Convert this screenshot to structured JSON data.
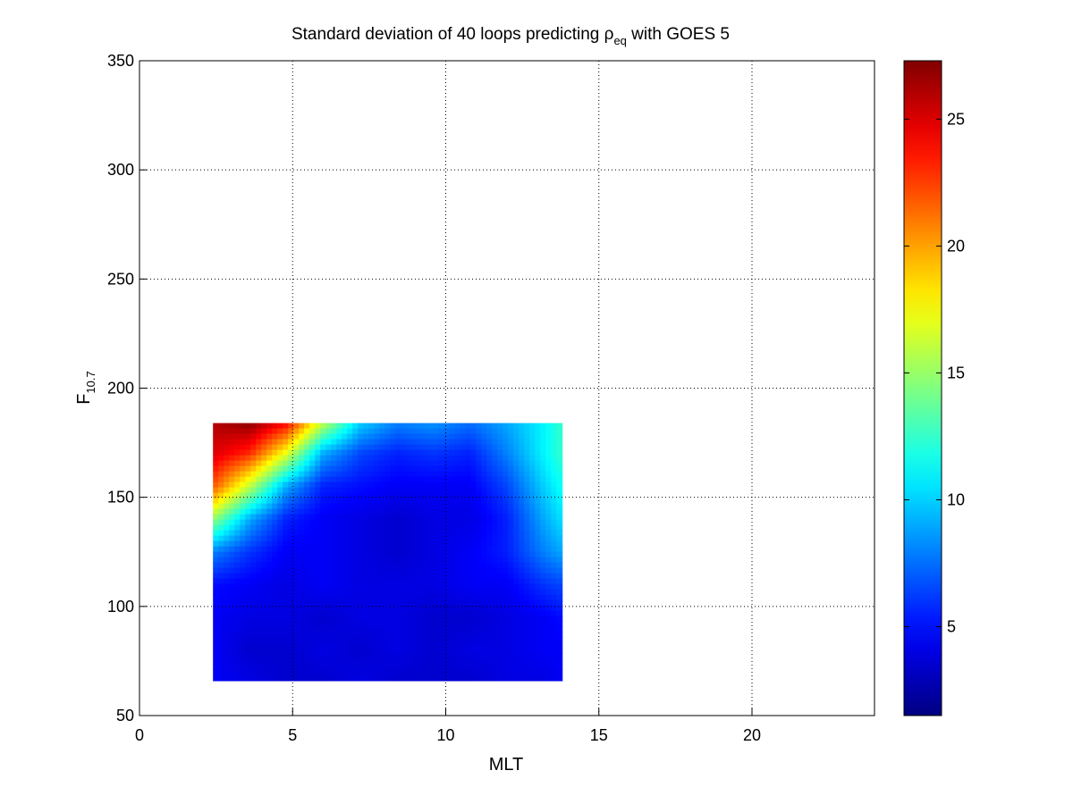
{
  "chart_data": {
    "type": "heatmap",
    "title": {
      "prefix": "Standard deviation of 40 loops predicting ",
      "symbol": "ρ",
      "subscript": "eq",
      "suffix": " with GOES 5"
    },
    "xlabel": "MLT",
    "ylabel": {
      "main": "F",
      "subscript": "10.7"
    },
    "xlim": [
      0,
      24
    ],
    "ylim": [
      50,
      350
    ],
    "x_ticks": [
      0,
      5,
      10,
      15,
      20
    ],
    "y_ticks": [
      50,
      100,
      150,
      200,
      250,
      300,
      350
    ],
    "grid": true,
    "grid_style": "dotted",
    "colormap": "jet",
    "colorbar": {
      "range": [
        1.5,
        27.3
      ],
      "ticks": [
        5,
        10,
        15,
        20,
        25
      ],
      "position": "right"
    },
    "data_extent": {
      "x": [
        2.4,
        13.8
      ],
      "y": [
        66,
        184
      ]
    },
    "grid_values": {
      "x": [
        2.4,
        3.6,
        4.8,
        6.0,
        7.2,
        8.4,
        9.6,
        10.8,
        12.0,
        13.2,
        13.8
      ],
      "y": [
        184,
        170,
        155,
        140,
        125,
        110,
        95,
        80,
        66
      ],
      "z": [
        [
          26.0,
          27.0,
          24.0,
          16.0,
          10.0,
          8.0,
          8.5,
          7.5,
          9.0,
          11.0,
          12.5
        ],
        [
          25.0,
          23.0,
          17.0,
          9.0,
          6.5,
          5.5,
          6.0,
          5.5,
          8.0,
          11.0,
          12.5
        ],
        [
          22.0,
          16.0,
          9.0,
          5.5,
          5.0,
          4.5,
          4.5,
          4.5,
          6.5,
          10.0,
          11.5
        ],
        [
          15.0,
          9.0,
          5.5,
          4.5,
          4.0,
          3.5,
          4.0,
          4.0,
          5.5,
          9.0,
          10.5
        ],
        [
          8.0,
          6.0,
          4.5,
          4.5,
          4.0,
          3.5,
          4.0,
          4.5,
          5.5,
          8.0,
          9.0
        ],
        [
          5.0,
          4.5,
          4.0,
          4.5,
          4.0,
          4.0,
          4.0,
          4.5,
          4.5,
          6.0,
          6.5
        ],
        [
          4.5,
          4.0,
          4.0,
          3.5,
          4.0,
          4.0,
          3.5,
          3.5,
          4.0,
          4.5,
          5.0
        ],
        [
          4.5,
          3.5,
          3.5,
          4.0,
          3.5,
          4.0,
          3.5,
          4.0,
          4.0,
          4.5,
          4.5
        ],
        [
          4.5,
          4.0,
          3.5,
          3.5,
          4.0,
          3.5,
          3.5,
          3.5,
          4.0,
          4.0,
          4.5
        ]
      ]
    }
  }
}
